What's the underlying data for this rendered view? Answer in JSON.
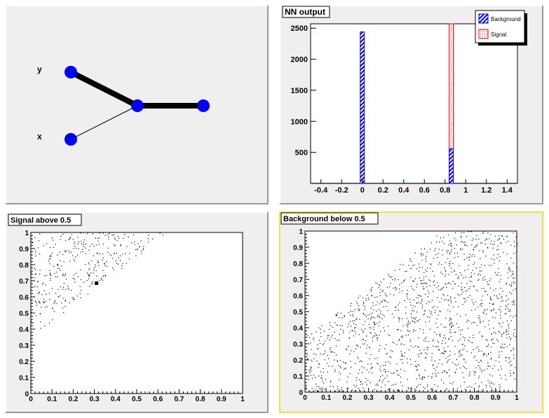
{
  "nn_panel": {
    "input_labels": [
      "y",
      "x"
    ],
    "edges": [
      {
        "from": "y",
        "to": "hidden",
        "weight": "heavy"
      },
      {
        "from": "x",
        "to": "hidden",
        "weight": "light"
      },
      {
        "from": "hidden",
        "to": "output",
        "weight": "heavy"
      }
    ],
    "node_color": "#0000ff"
  },
  "chart_data": [
    {
      "type": "bar",
      "title": "NN output",
      "xlim": [
        -0.5,
        1.5
      ],
      "ylim": [
        0,
        2570
      ],
      "x_ticks": [
        -0.4,
        -0.2,
        0,
        0.2,
        0.4,
        0.6,
        0.8,
        1,
        1.2,
        1.4
      ],
      "y_ticks": [
        500,
        1000,
        1500,
        2000,
        2500
      ],
      "bin_width": 0.04,
      "series": [
        {
          "name": "Background",
          "color": "#0000ff",
          "bins": [
            {
              "x": 0.0,
              "value": 2440
            },
            {
              "x": 0.86,
              "value": 560
            }
          ]
        },
        {
          "name": "Signal",
          "color": "#ff0000",
          "bins": [
            {
              "x": 0.86,
              "value": 2570
            }
          ]
        }
      ],
      "legend_position": "top-right"
    },
    {
      "type": "scatter",
      "title": "Signal above 0.5",
      "xlim": [
        0,
        1
      ],
      "ylim": [
        0,
        1
      ],
      "ticks": [
        0,
        0.1,
        0.2,
        0.3,
        0.4,
        0.5,
        0.6,
        0.7,
        0.8,
        0.9,
        1
      ],
      "region": "y > x + 0.35",
      "n_points": 340,
      "highlight_point": [
        0.31,
        0.685
      ],
      "point_color": "#000000"
    },
    {
      "type": "scatter",
      "title": "Background below 0.5",
      "xlim": [
        0,
        1
      ],
      "ylim": [
        0,
        1
      ],
      "ticks": [
        0,
        0.1,
        0.2,
        0.3,
        0.4,
        0.5,
        0.6,
        0.7,
        0.8,
        0.9,
        1
      ],
      "region": "y < x + 0.35",
      "n_points": 1500,
      "point_color": "#000000"
    }
  ],
  "colors": {
    "pad_bg": "#f0eeee",
    "frame_bg": "#ffffff",
    "selected_border": "#f0e040",
    "background_fill": "#0000ff",
    "signal_fill": "#ff0000"
  }
}
